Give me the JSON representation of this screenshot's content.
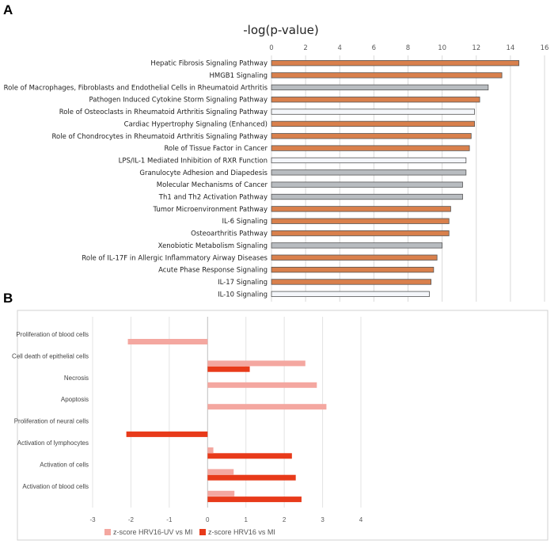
{
  "panel_labels": {
    "a": "A",
    "b": "B"
  },
  "colors": {
    "orange": "#D9804C",
    "gray": "#B8BCC0",
    "white": "#F4F6FA",
    "bar_stroke": "#555555",
    "light_red": "#F4A7A0",
    "dark_red": "#E83A1A",
    "grid": "#D9D9D9"
  },
  "chart_data": [
    {
      "type": "bar",
      "orientation": "horizontal",
      "title": "-log(p-value)",
      "xlim": [
        0,
        16
      ],
      "xticks": [
        0,
        2,
        4,
        6,
        8,
        10,
        12,
        14,
        16
      ],
      "categories": [
        "Hepatic Fibrosis Signaling Pathway",
        "HMGB1 Signaling",
        "Role of Macrophages, Fibroblasts and Endothelial Cells in Rheumatoid Arthritis",
        "Pathogen Induced Cytokine Storm Signaling Pathway",
        "Role of Osteoclasts in Rheumatoid Arthritis Signaling Pathway",
        "Cardiac Hypertrophy Signaling (Enhanced)",
        "Role of Chondrocytes in Rheumatoid Arthritis Signaling Pathway",
        "Role of Tissue Factor in Cancer",
        "LPS/IL-1 Mediated Inhibition of RXR Function",
        "Granulocyte Adhesion and Diapedesis",
        "Molecular Mechanisms of Cancer",
        "Th1 and Th2 Activation Pathway",
        "Tumor Microenvironment Pathway",
        "IL-6 Signaling",
        "Osteoarthritis Pathway",
        "Xenobiotic Metabolism Signaling",
        "Role of IL-17F in Allergic Inflammatory Airway Diseases",
        "Acute Phase Response Signaling",
        "IL-17 Signaling",
        "IL-10 Signaling"
      ],
      "values": [
        14.5,
        13.5,
        12.7,
        12.2,
        11.9,
        11.9,
        11.7,
        11.6,
        11.4,
        11.4,
        11.2,
        11.2,
        10.5,
        10.4,
        10.4,
        10.0,
        9.7,
        9.5,
        9.35,
        9.25
      ],
      "bar_colors": [
        "orange",
        "orange",
        "gray",
        "orange",
        "white",
        "orange",
        "orange",
        "orange",
        "white",
        "gray",
        "gray",
        "gray",
        "orange",
        "orange",
        "orange",
        "gray",
        "orange",
        "orange",
        "orange",
        "white"
      ],
      "grid": true
    },
    {
      "type": "bar",
      "orientation": "horizontal",
      "title": "",
      "xlim": [
        -3,
        4
      ],
      "xticks": [
        -3,
        -2,
        -1,
        0,
        1,
        2,
        3,
        4
      ],
      "categories": [
        "Proliferation of blood cells",
        "Cell death of epithelial cells",
        "Necrosis",
        "Apoptosis",
        "Proliferation of neural cells",
        "Activation of lymphocytes",
        "Activation of cells",
        "Activation of blood cells"
      ],
      "series": [
        {
          "name": "z-score HRV16-UV vs MI",
          "color": "light_red",
          "values": [
            -2.08,
            2.55,
            2.85,
            3.1,
            null,
            0.15,
            0.68,
            0.7
          ]
        },
        {
          "name": "z-score HRV16 vs MI",
          "color": "dark_red",
          "values": [
            null,
            1.1,
            null,
            null,
            -2.12,
            2.2,
            2.3,
            2.45
          ]
        }
      ],
      "legend_position": "bottom",
      "grid": true
    }
  ]
}
